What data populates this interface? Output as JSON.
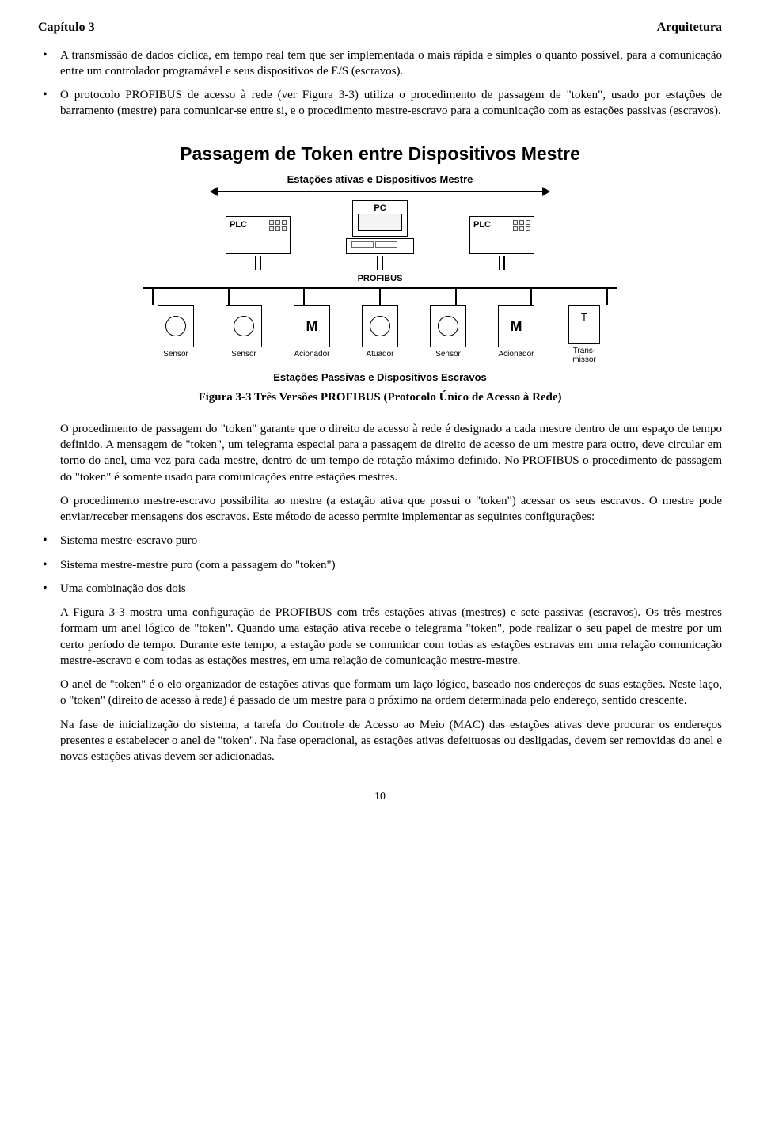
{
  "header": {
    "left": "Capítulo 3",
    "right": "Arquitetura"
  },
  "bullets_top": [
    "A transmissão de dados cíclica, em tempo real tem que ser implementada o mais rápida e simples o quanto possível, para a comunicação entre um controlador programável e seus dispositivos de E/S (escravos).",
    "O protocolo PROFIBUS de acesso à rede (ver Figura 3-3) utiliza o procedimento de passagem de \"token\", usado por estações de barramento (mestre) para comunicar-se entre si, e o procedimento mestre-escravo para a comunicação com as estações passivas (escravos)."
  ],
  "figure": {
    "title": "Passagem de Token entre Dispositivos Mestre",
    "sub_top": "Estações ativas e Dispositivos Mestre",
    "bus_label": "PROFIBUS",
    "masters": {
      "plc1": "PLC",
      "pc": "PC",
      "plc2": "PLC"
    },
    "slaves": [
      {
        "type": "circle",
        "label": "Sensor"
      },
      {
        "type": "circle",
        "label": "Sensor"
      },
      {
        "type": "m",
        "label": "Acionador"
      },
      {
        "type": "circle",
        "label": "Atuador"
      },
      {
        "type": "circle",
        "label": "Sensor"
      },
      {
        "type": "m",
        "label": "Acionador"
      },
      {
        "type": "t",
        "label": "Trans-\nmissor"
      }
    ],
    "sub_bottom": "Estações Passivas e Dispositivos Escravos",
    "caption": "Figura 3-3 Três Versões PROFIBUS (Protocolo Único de Acesso à Rede)"
  },
  "after_figure_paras": [
    "O procedimento de passagem do \"token\" garante que o direito de acesso à rede é designado a cada mestre dentro de um espaço de tempo definido. A mensagem de \"token\", um telegrama especial para a passagem de direito de acesso de um mestre para outro, deve circular em torno do anel, uma vez para cada mestre, dentro de um tempo de rotação máximo definido. No PROFIBUS o procedimento de passagem do \"token\" é somente usado para comunicações entre estações mestres.",
    "O procedimento mestre-escravo possibilita ao mestre (a estação ativa que possui o \"token\") acessar os seus escravos. O mestre pode enviar/receber mensagens dos escravos. Este método de acesso permite implementar as seguintes configurações:"
  ],
  "config_bullets": [
    "Sistema mestre-escravo puro",
    "Sistema mestre-mestre puro (com a passagem do \"token\")",
    "Uma combinação dos dois"
  ],
  "tail_paras": [
    "A Figura 3-3 mostra uma configuração de PROFIBUS com três estações ativas (mestres) e sete passivas (escravos). Os três mestres formam um anel lógico de \"token\". Quando uma estação ativa recebe o telegrama \"token\", pode realizar o seu papel de mestre por um certo período de tempo. Durante este tempo, a estação pode se comunicar com todas as estações escravas em uma relação comunicação mestre-escravo e com todas as estações mestres, em uma relação de comunicação mestre-mestre.",
    "O anel de \"token\" é o elo organizador de estações ativas que formam um laço lógico, baseado nos endereços de suas estações. Neste laço, o \"token\" (direito de acesso à rede) é passado de um mestre para o próximo na ordem determinada pelo endereço, sentido crescente.",
    "Na fase de inicialização do sistema, a tarefa do Controle de Acesso ao Meio (MAC) das estações ativas deve procurar os endereços presentes e estabelecer o anel de \"token\". Na fase operacional, as estações ativas defeituosas ou desligadas, devem ser removidas do anel e novas estações ativas devem ser adicionadas."
  ],
  "page_number": "10"
}
